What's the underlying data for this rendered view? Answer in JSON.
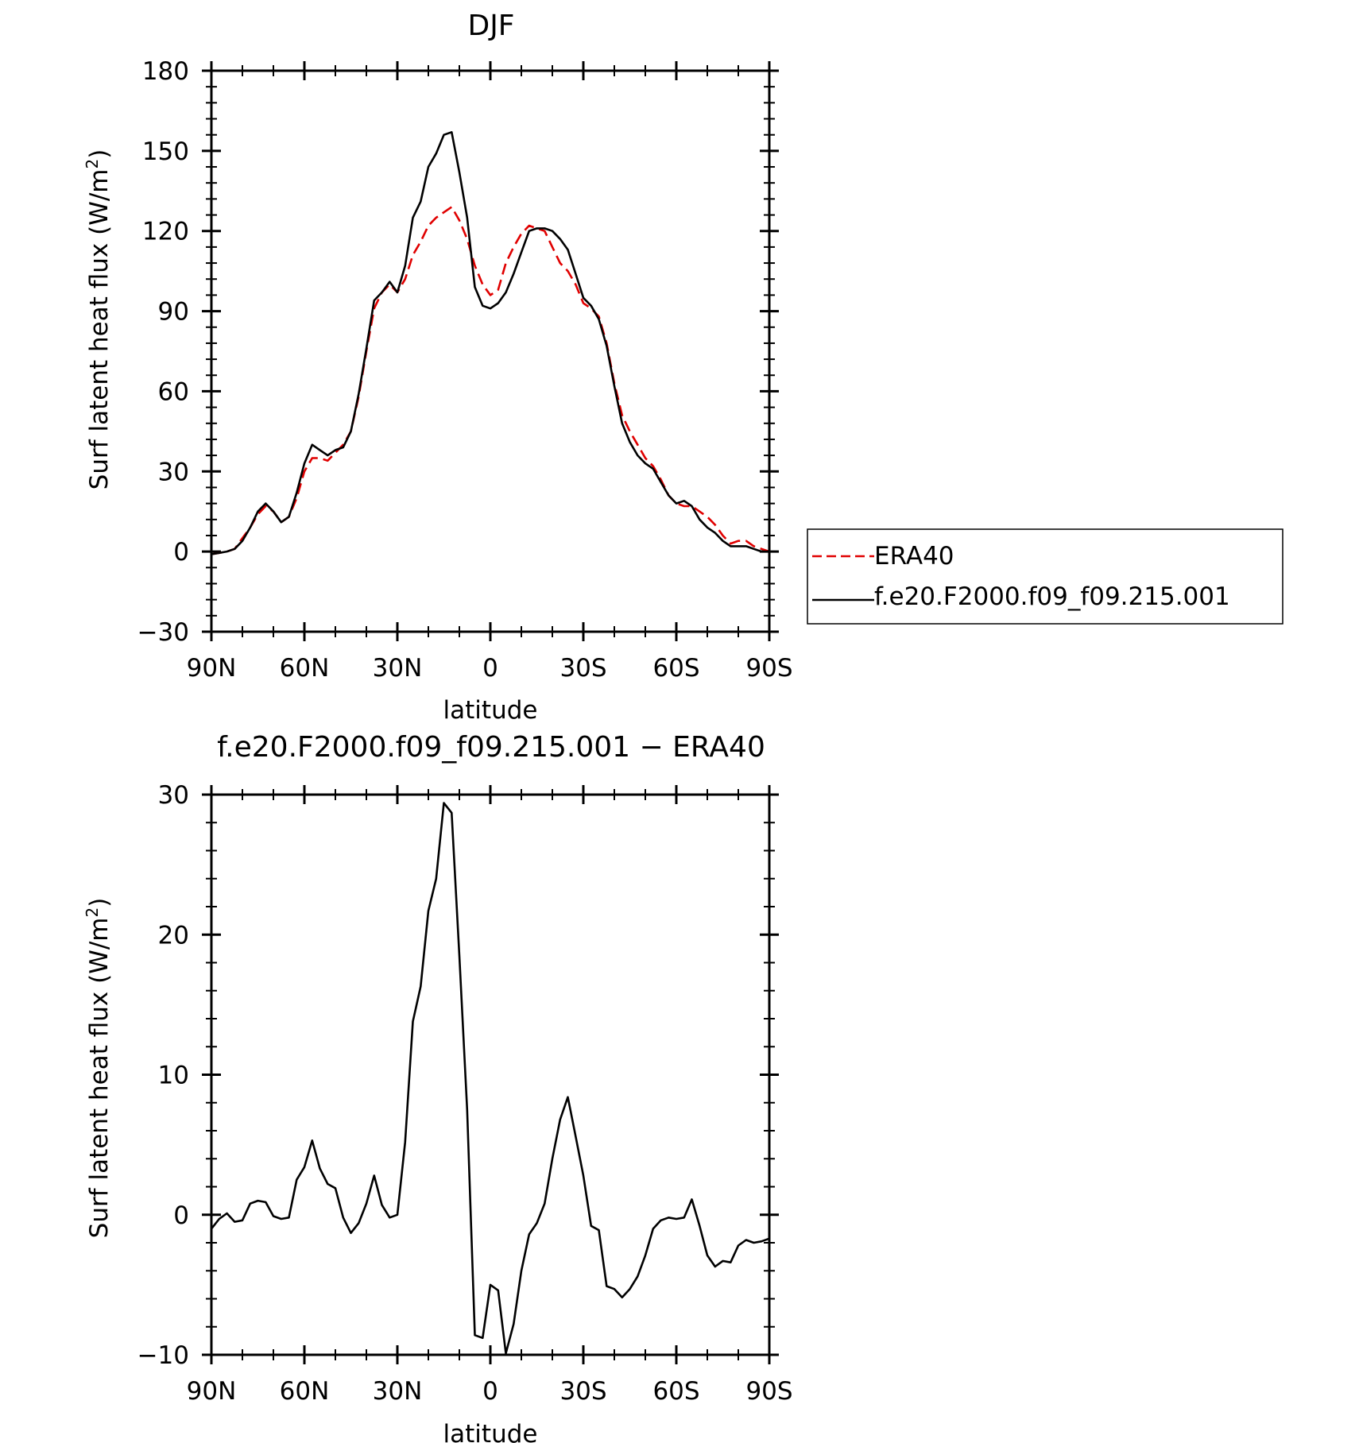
{
  "chart_data": [
    {
      "type": "line",
      "title": "DJF",
      "xlabel": "latitude",
      "ylabel": "Surf latent heat flux (W/m²)",
      "ylabel_main": "Surf latent heat flux (W/m",
      "ylabel_sup": "2",
      "ylabel_end": ")",
      "ylim": [
        -30,
        180
      ],
      "xlim": [
        90,
        -90
      ],
      "yticks": [
        -30,
        0,
        30,
        60,
        90,
        120,
        150,
        180
      ],
      "ytick_labels": [
        "−30",
        "0",
        "30",
        "60",
        "90",
        "120",
        "150",
        "180"
      ],
      "xticks": [
        90,
        60,
        30,
        0,
        -30,
        -60,
        -90
      ],
      "xtick_labels": [
        "90N",
        "60N",
        "30N",
        "0",
        "30S",
        "60S",
        "90S"
      ],
      "grid": false,
      "legend": "right",
      "x": [
        90,
        87.5,
        85,
        82.5,
        80,
        77.5,
        75,
        72.5,
        70,
        67.5,
        65,
        62.5,
        60,
        57.5,
        55,
        52.5,
        50,
        47.5,
        45,
        42.5,
        40,
        37.5,
        35,
        32.5,
        30,
        27.5,
        25,
        22.5,
        20,
        17.5,
        15,
        12.5,
        10,
        7.5,
        5,
        2.5,
        0,
        -2.5,
        -5,
        -7.5,
        -10,
        -12.5,
        -15,
        -17.5,
        -20,
        -22.5,
        -25,
        -27.5,
        -30,
        -32.5,
        -35,
        -37.5,
        -40,
        -42.5,
        -45,
        -47.5,
        -50,
        -52.5,
        -55,
        -57.5,
        -60,
        -62.5,
        -65,
        -67.5,
        -70,
        -72.5,
        -75,
        -77.5,
        -80,
        -82.5,
        -85,
        -87.5,
        -90
      ],
      "series": [
        {
          "name": "ERA40",
          "color": "#e00000",
          "dash": "dashed",
          "values": [
            -1,
            -0.5,
            0,
            1,
            5,
            9,
            14,
            17,
            15,
            11,
            13,
            20,
            30,
            35,
            35,
            34,
            37,
            40,
            45,
            58,
            75,
            91,
            97,
            100,
            97,
            102,
            111,
            116,
            122,
            125,
            127,
            129,
            124,
            117,
            107,
            100,
            96,
            98,
            108,
            114,
            119,
            122,
            121,
            120,
            114,
            108,
            105,
            100,
            93,
            91,
            88,
            78,
            63,
            51,
            45,
            40,
            35,
            32,
            27,
            21,
            18,
            17,
            17,
            15,
            13,
            10,
            6,
            3,
            4,
            4,
            2,
            1,
            0
          ]
        },
        {
          "name": "f.e20.F2000.f09_f09.215.001",
          "color": "#000000",
          "dash": "solid",
          "values": [
            -1,
            -0.5,
            0,
            1,
            4,
            9,
            15,
            18,
            15,
            11,
            13,
            22,
            33,
            40,
            38,
            36,
            38,
            39,
            45,
            59,
            76,
            94,
            97,
            101,
            97,
            107,
            125,
            131,
            144,
            149,
            156,
            157,
            142,
            125,
            99,
            92,
            91,
            93,
            97,
            104,
            112,
            120,
            121,
            121,
            120,
            117,
            113,
            104,
            95,
            92,
            87,
            77,
            62,
            48,
            41,
            36,
            33,
            31,
            26,
            21,
            18,
            19,
            17,
            12,
            9,
            7,
            4,
            2,
            2,
            2,
            1,
            0,
            0
          ]
        }
      ]
    },
    {
      "type": "line",
      "title": "f.e20.F2000.f09_f09.215.001 − ERA40",
      "xlabel": "latitude",
      "ylabel": "Surf latent heat flux (W/m²)",
      "ylabel_main": "Surf latent heat flux (W/m",
      "ylabel_sup": "2",
      "ylabel_end": ")",
      "ylim": [
        -10,
        30
      ],
      "xlim": [
        90,
        -90
      ],
      "yticks": [
        -10,
        0,
        10,
        20,
        30
      ],
      "ytick_labels": [
        "−10",
        "0",
        "10",
        "20",
        "30"
      ],
      "xticks": [
        90,
        60,
        30,
        0,
        -30,
        -60,
        -90
      ],
      "xtick_labels": [
        "90N",
        "60N",
        "30N",
        "0",
        "30S",
        "60S",
        "90S"
      ],
      "grid": false,
      "x": [
        90,
        87.5,
        85,
        82.5,
        80,
        77.5,
        75,
        72.5,
        70,
        67.5,
        65,
        62.5,
        60,
        57.5,
        55,
        52.5,
        50,
        47.5,
        45,
        42.5,
        40,
        37.5,
        35,
        32.5,
        30,
        27.5,
        25,
        22.5,
        20,
        17.5,
        15,
        12.5,
        10,
        7.5,
        5,
        2.5,
        0,
        -2.5,
        -5,
        -7.5,
        -10,
        -12.5,
        -15,
        -17.5,
        -20,
        -22.5,
        -25,
        -27.5,
        -30,
        -32.5,
        -35,
        -37.5,
        -40,
        -42.5,
        -45,
        -47.5,
        -50,
        -52.5,
        -55,
        -57.5,
        -60,
        -62.5,
        -65,
        -67.5,
        -70,
        -72.5,
        -75,
        -77.5,
        -80,
        -82.5,
        -85,
        -87.5,
        -90
      ],
      "series": [
        {
          "color": "#000000",
          "dash": "solid",
          "values": [
            -1,
            -0.3,
            0.1,
            -0.5,
            -0.4,
            0.8,
            1.0,
            0.9,
            -0.1,
            -0.3,
            -0.2,
            2.5,
            3.4,
            5.3,
            3.3,
            2.2,
            1.9,
            -0.2,
            -1.3,
            -0.6,
            0.8,
            2.8,
            0.7,
            -0.2,
            0,
            5.2,
            13.8,
            16.3,
            21.7,
            24.0,
            29.4,
            28.7,
            18.5,
            7.5,
            -8.6,
            -8.8,
            -5.0,
            -5.4,
            -9.9,
            -7.8,
            -4.0,
            -1.4,
            -0.6,
            0.8,
            4.0,
            6.8,
            8.4,
            5.6,
            2.8,
            -0.8,
            -1.1,
            -5.1,
            -5.3,
            -5.9,
            -5.3,
            -4.4,
            -2.9,
            -1.0,
            -0.4,
            -0.2,
            -0.3,
            -0.2,
            1.1,
            -0.8,
            -2.9,
            -3.7,
            -3.3,
            -3.4,
            -2.2,
            -1.8,
            -2.0,
            -1.9,
            -1.7
          ]
        }
      ]
    }
  ]
}
